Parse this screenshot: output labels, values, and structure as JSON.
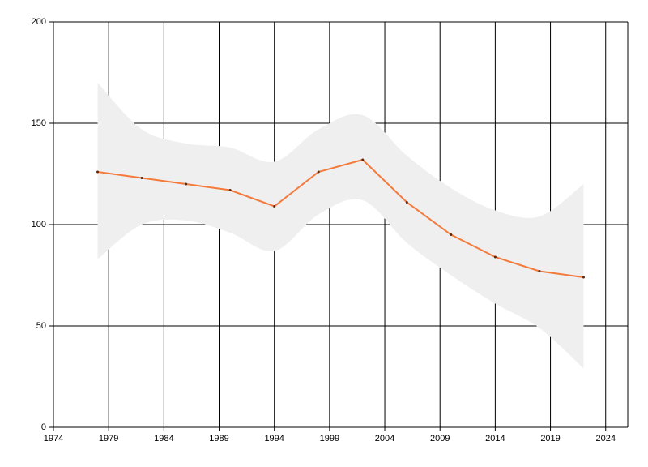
{
  "chart_data": {
    "type": "line",
    "x": [
      1978,
      1982,
      1986,
      1990,
      1994,
      1998,
      2002,
      2006,
      2010,
      2014,
      2018,
      2022
    ],
    "values": [
      126,
      123,
      120,
      117,
      109,
      126,
      132,
      111,
      95,
      84,
      77,
      74
    ],
    "band_upper": [
      170,
      147,
      140,
      138,
      131,
      147,
      154,
      134,
      118,
      107,
      104,
      120
    ],
    "band_lower": [
      83,
      100,
      102,
      96,
      87,
      105,
      112,
      91,
      75,
      61,
      49,
      29
    ],
    "color": "#f47a3c",
    "band_color": "#efefef",
    "xlim": [
      1974,
      2026
    ],
    "xticks": [
      1974,
      1979,
      1984,
      1989,
      1994,
      1999,
      2004,
      2009,
      2014,
      2019,
      2024
    ],
    "ylim": [
      0,
      200
    ],
    "yticks": [
      0,
      50,
      100,
      150,
      200
    ],
    "grid": true
  }
}
